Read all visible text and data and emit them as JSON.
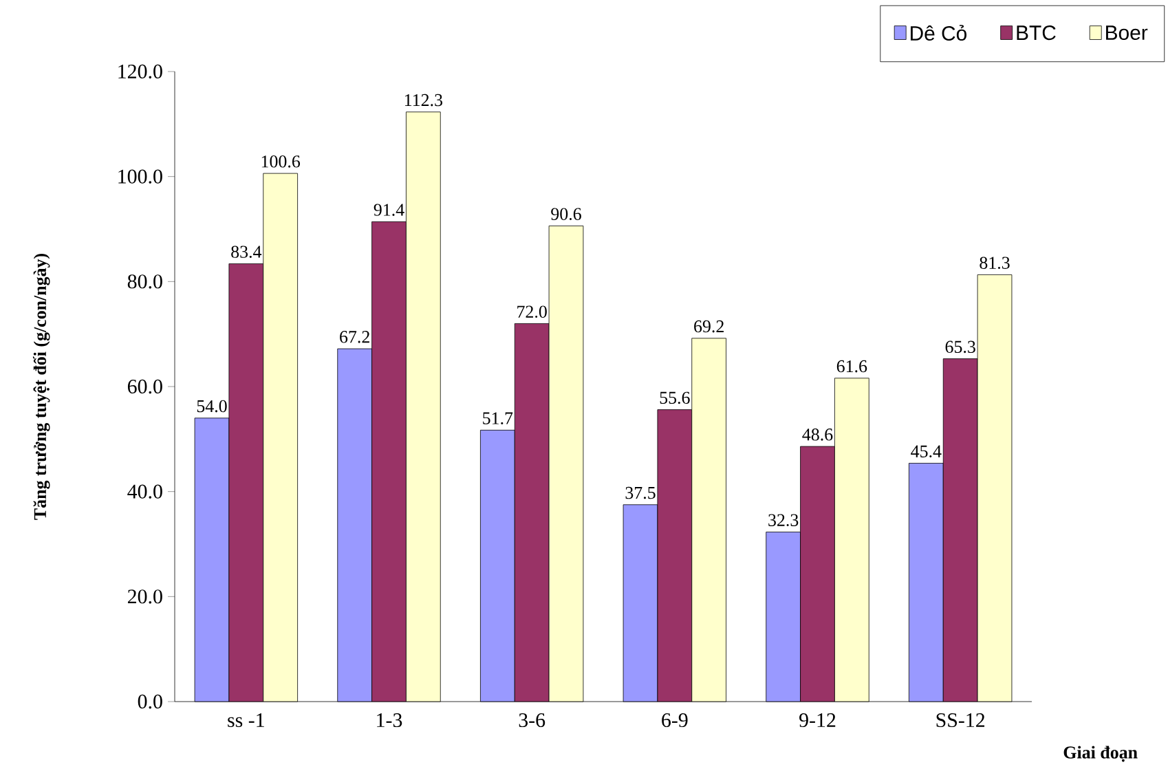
{
  "chart_data": {
    "type": "bar",
    "xlabel": "Giai đoạn",
    "ylabel": "Tăng trưởng tuyệt đối (g/con/ngày)",
    "categories": [
      "ss -1",
      "1-3",
      "3-6",
      "6-9",
      "9-12",
      "SS-12"
    ],
    "series": [
      {
        "name": "Dê Cỏ",
        "color": "#9999ff",
        "values": [
          54.0,
          67.2,
          51.7,
          37.5,
          32.3,
          45.4
        ],
        "value_labels": [
          "54.0",
          "67.2",
          "51.7",
          "37.5",
          "32.3",
          "45.4"
        ]
      },
      {
        "name": "BTC",
        "color": "#993366",
        "values": [
          83.4,
          91.4,
          72.0,
          55.6,
          48.6,
          65.3
        ],
        "value_labels": [
          "83.4",
          "91.4",
          "72.0",
          "55.6",
          "48.6",
          "65.3"
        ]
      },
      {
        "name": "Boer",
        "color": "#ffffcc",
        "values": [
          100.6,
          112.3,
          90.6,
          69.2,
          61.6,
          81.3
        ],
        "value_labels": [
          "100.6",
          "112.3",
          "90.6",
          "69.2",
          "61.6",
          "81.3"
        ]
      }
    ],
    "ylim": [
      0,
      120
    ],
    "yticks": [
      {
        "value": 0,
        "label": "0.0"
      },
      {
        "value": 20,
        "label": "20.0"
      },
      {
        "value": 40,
        "label": "40.0"
      },
      {
        "value": 60,
        "label": "60.0"
      },
      {
        "value": 80,
        "label": "80.0"
      },
      {
        "value": 100,
        "label": "100.0"
      },
      {
        "value": 120,
        "label": "120.0"
      }
    ],
    "legend": "top right"
  }
}
